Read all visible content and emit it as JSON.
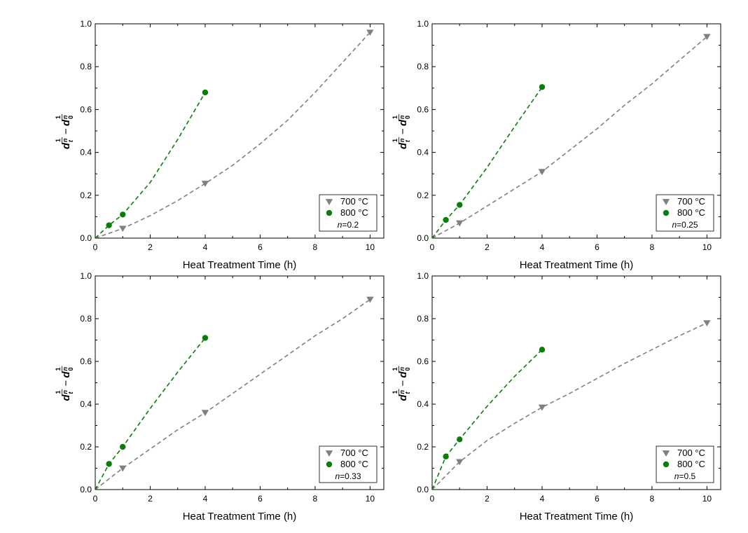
{
  "chart_data": [
    {
      "type": "scatter",
      "xlabel": "Heat Treatment Time (h)",
      "xlim": [
        0,
        10.5
      ],
      "ylim": [
        0,
        1.0
      ],
      "xticks": [
        "0",
        "2",
        "4",
        "6",
        "8",
        "10"
      ],
      "yticks": [
        "0.0",
        "0.2",
        "0.4",
        "0.6",
        "0.8",
        "1.0"
      ],
      "n_label": "=0.2",
      "series": [
        {
          "name": "700 °C",
          "color": "#808080",
          "marker": "triangle-down",
          "x": [
            1,
            4,
            10
          ],
          "y": [
            0.045,
            0.255,
            0.96
          ]
        },
        {
          "name": "800 °C",
          "color": "#0a7d0a",
          "marker": "circle",
          "x": [
            0.5,
            1,
            4
          ],
          "y": [
            0.06,
            0.11,
            0.68
          ]
        }
      ],
      "fits": [
        {
          "series": "700 °C",
          "color": "#808080",
          "x": [
            0,
            1,
            2,
            3,
            4,
            5,
            6,
            7,
            8,
            9,
            10
          ],
          "y": [
            0,
            0.045,
            0.105,
            0.175,
            0.255,
            0.34,
            0.44,
            0.55,
            0.68,
            0.82,
            0.96
          ]
        },
        {
          "series": "800 °C",
          "color": "#0a7d0a",
          "x": [
            0,
            0.5,
            1,
            2,
            3,
            4
          ],
          "y": [
            0,
            0.06,
            0.11,
            0.26,
            0.46,
            0.68
          ]
        }
      ]
    },
    {
      "type": "scatter",
      "xlabel": "Heat Treatment Time (h)",
      "xlim": [
        0,
        10.5
      ],
      "ylim": [
        0,
        1.0
      ],
      "xticks": [
        "0",
        "2",
        "4",
        "6",
        "8",
        "10"
      ],
      "yticks": [
        "0.0",
        "0.2",
        "0.4",
        "0.6",
        "0.8",
        "1.0"
      ],
      "n_label": "=0.25",
      "series": [
        {
          "name": "700 °C",
          "color": "#808080",
          "marker": "triangle-down",
          "x": [
            1,
            4,
            10
          ],
          "y": [
            0.07,
            0.31,
            0.94
          ]
        },
        {
          "name": "800 °C",
          "color": "#0a7d0a",
          "marker": "circle",
          "x": [
            0.5,
            1,
            4
          ],
          "y": [
            0.085,
            0.155,
            0.705
          ]
        }
      ],
      "fits": [
        {
          "series": "700 °C",
          "color": "#808080",
          "x": [
            0,
            1,
            2,
            3,
            4,
            5,
            6,
            7,
            8,
            9,
            10
          ],
          "y": [
            0,
            0.07,
            0.15,
            0.23,
            0.31,
            0.41,
            0.51,
            0.62,
            0.72,
            0.83,
            0.94
          ]
        },
        {
          "series": "800 °C",
          "color": "#0a7d0a",
          "x": [
            0,
            0.5,
            1,
            2,
            3,
            4
          ],
          "y": [
            0,
            0.085,
            0.155,
            0.33,
            0.52,
            0.705
          ]
        }
      ]
    },
    {
      "type": "scatter",
      "xlabel": "Heat Treatment Time (h)",
      "xlim": [
        0,
        10.5
      ],
      "ylim": [
        0,
        1.0
      ],
      "xticks": [
        "0",
        "2",
        "4",
        "6",
        "8",
        "10"
      ],
      "yticks": [
        "0.0",
        "0.2",
        "0.4",
        "0.6",
        "0.8",
        "1.0"
      ],
      "n_label": "=0.33",
      "series": [
        {
          "name": "700 °C",
          "color": "#808080",
          "marker": "triangle-down",
          "x": [
            1,
            4,
            10
          ],
          "y": [
            0.1,
            0.36,
            0.89
          ]
        },
        {
          "name": "800 °C",
          "color": "#0a7d0a",
          "marker": "circle",
          "x": [
            0.5,
            1,
            4
          ],
          "y": [
            0.12,
            0.2,
            0.71
          ]
        }
      ],
      "fits": [
        {
          "series": "700 °C",
          "color": "#808080",
          "x": [
            0,
            1,
            2,
            3,
            4,
            5,
            6,
            7,
            8,
            9,
            10
          ],
          "y": [
            0,
            0.1,
            0.19,
            0.28,
            0.36,
            0.45,
            0.54,
            0.63,
            0.72,
            0.8,
            0.89
          ]
        },
        {
          "series": "800 °C",
          "color": "#0a7d0a",
          "x": [
            0,
            0.5,
            1,
            2,
            3,
            4
          ],
          "y": [
            0,
            0.12,
            0.2,
            0.38,
            0.55,
            0.71
          ]
        }
      ]
    },
    {
      "type": "scatter",
      "xlabel": "Heat Treatment Time (h)",
      "xlim": [
        0,
        10.5
      ],
      "ylim": [
        0,
        1.0
      ],
      "xticks": [
        "0",
        "2",
        "4",
        "6",
        "8",
        "10"
      ],
      "yticks": [
        "0.0",
        "0.2",
        "0.4",
        "0.6",
        "0.8",
        "1.0"
      ],
      "n_label": "=0.5",
      "series": [
        {
          "name": "700 °C",
          "color": "#808080",
          "marker": "triangle-down",
          "x": [
            1,
            4,
            10
          ],
          "y": [
            0.13,
            0.385,
            0.78
          ]
        },
        {
          "name": "800 °C",
          "color": "#0a7d0a",
          "marker": "circle",
          "x": [
            0.5,
            1,
            4
          ],
          "y": [
            0.155,
            0.235,
            0.655
          ]
        }
      ],
      "fits": [
        {
          "series": "700 °C",
          "color": "#808080",
          "x": [
            0,
            1,
            2,
            3,
            4,
            5,
            6,
            7,
            8,
            9,
            10
          ],
          "y": [
            0,
            0.13,
            0.23,
            0.31,
            0.385,
            0.45,
            0.52,
            0.59,
            0.655,
            0.72,
            0.78
          ]
        },
        {
          "series": "800 °C",
          "color": "#0a7d0a",
          "x": [
            0,
            0.5,
            1,
            2,
            3,
            4
          ],
          "y": [
            0,
            0.155,
            0.235,
            0.39,
            0.53,
            0.655
          ]
        }
      ]
    }
  ]
}
